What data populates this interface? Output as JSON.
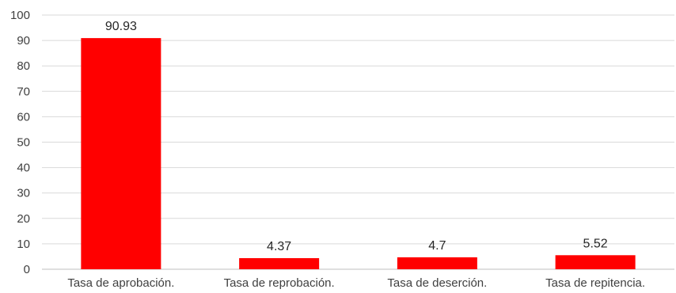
{
  "chart_data": {
    "type": "bar",
    "categories": [
      "Tasa de aprobación.",
      "Tasa de reprobación.",
      "Tasa de deserción.",
      "Tasa de repitencia."
    ],
    "values": [
      90.93,
      4.37,
      4.7,
      5.52
    ],
    "value_labels": [
      "90.93",
      "4.37",
      "4.7",
      "5.52"
    ],
    "yticks": [
      "0",
      "10",
      "20",
      "30",
      "40",
      "50",
      "60",
      "70",
      "80",
      "90",
      "100"
    ],
    "ylim": [
      0,
      100
    ],
    "grid": true,
    "legend": false,
    "bar_color": "#ff0000",
    "title": "",
    "xlabel": "",
    "ylabel": ""
  }
}
